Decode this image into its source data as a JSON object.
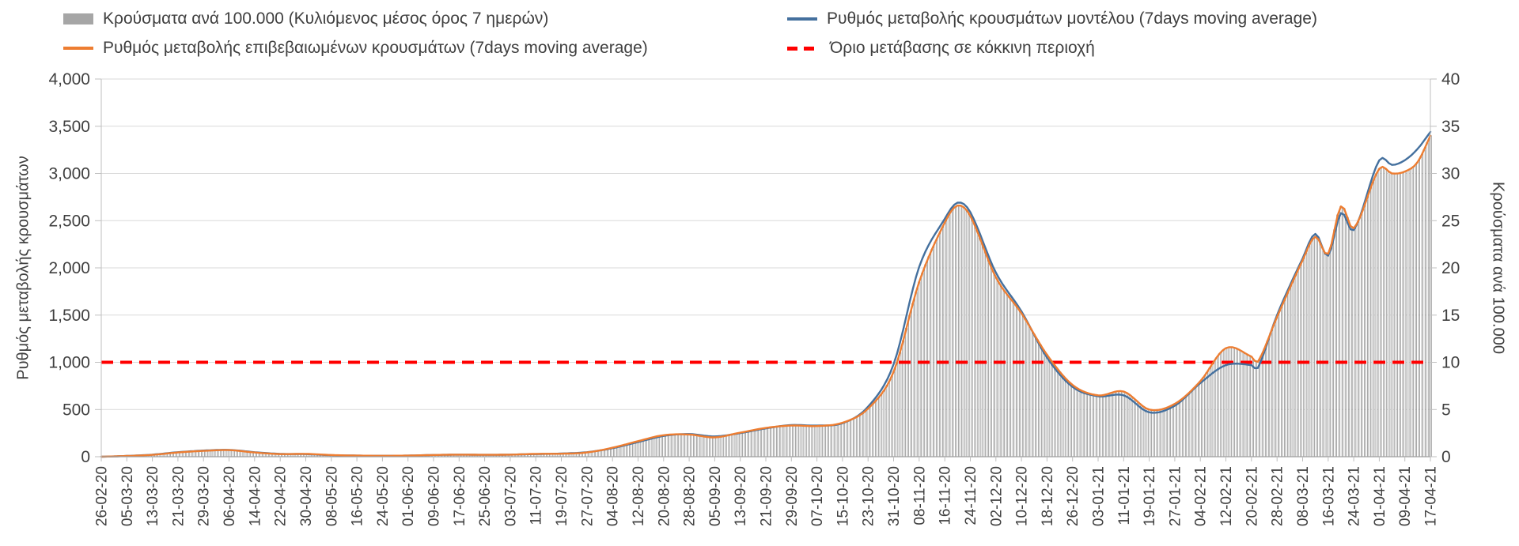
{
  "legend": {
    "items": [
      {
        "key": "cases_per_100k_bars",
        "swatch": "gray-bar",
        "label": "Κρούσματα ανά 100.000 (Κυλιόμενος μέσος όρος 7 ημερών)"
      },
      {
        "key": "model_rate_line",
        "swatch": "blue-line",
        "label": "Ρυθμός μεταβολής κρουσμάτων μοντέλου (7days moving average)"
      },
      {
        "key": "confirmed_rate_line",
        "swatch": "orange-line",
        "label": "Ρυθμός μεταβολής επιβεβαιωμένων κρουσμάτων (7days moving average)"
      },
      {
        "key": "red_zone_threshold",
        "swatch": "red-dashed-line",
        "label": "Όριο μετάβασης σε κόκκινη περιοχή"
      }
    ]
  },
  "colors": {
    "text": "#404040",
    "axis_line": "#9f9f9f",
    "tick_line": "#bfbfbf",
    "grid": "#d9d9d9",
    "bar_legend_swatch": "#a6a6a6",
    "bar_fill": "#ffffff",
    "bar_stroke": "#8f8f8f",
    "model_blue": "#44709e",
    "confirmed_orange": "#ed7d31",
    "threshold_red": "#ff0000"
  },
  "chart_data": {
    "type": "combo_bar_line",
    "title": "",
    "legend_position": "top",
    "grid": {
      "show_horizontal": true,
      "show_vertical": false,
      "color": "#d9d9d9"
    },
    "x_axis": {
      "unit": "date (dd-mm-yy), daily data, labels every 8 days",
      "days_per_tick": 8,
      "tick_labels": [
        "26-02-20",
        "05-03-20",
        "13-03-20",
        "21-03-20",
        "29-03-20",
        "06-04-20",
        "14-04-20",
        "22-04-20",
        "30-04-20",
        "08-05-20",
        "16-05-20",
        "24-05-20",
        "01-06-20",
        "09-06-20",
        "17-06-20",
        "25-06-20",
        "03-07-20",
        "11-07-20",
        "19-07-20",
        "27-07-20",
        "04-08-20",
        "12-08-20",
        "20-08-20",
        "28-08-20",
        "05-09-20",
        "13-09-20",
        "21-09-20",
        "29-09-20",
        "07-10-20",
        "15-10-20",
        "23-10-20",
        "31-10-20",
        "08-11-20",
        "16-11-20",
        "24-11-20",
        "02-12-20",
        "10-12-20",
        "18-12-20",
        "26-12-20",
        "03-01-21",
        "11-01-21",
        "19-01-21",
        "27-01-21",
        "04-02-21",
        "12-02-21",
        "20-02-21",
        "28-02-21",
        "08-03-21",
        "16-03-21",
        "24-03-21",
        "01-04-21",
        "09-04-21",
        "17-04-21"
      ]
    },
    "left_axis": {
      "title": "Ρυθμός μεταβολής κρουσμάτων",
      "min": 0,
      "max": 4000,
      "step": 500,
      "tick_labels": [
        "4,000",
        "3,500",
        "3,000",
        "2,500",
        "2,000",
        "1,500",
        "1,000",
        "500",
        "0"
      ]
    },
    "right_axis": {
      "title": "Κρούσματα ανά 100.000",
      "min": 0,
      "max": 40,
      "step": 5,
      "tick_labels": [
        "40",
        "35",
        "30",
        "25",
        "20",
        "15",
        "10",
        "5",
        "0"
      ]
    },
    "threshold": {
      "label": "Όριο μετάβασης σε κόκκινη περιοχή",
      "value_left_axis": 1000,
      "value_right_axis": 10,
      "color": "#ff0000",
      "style": "dashed"
    },
    "bars": {
      "name": "Κρούσματα ανά 100.000 (Κυλιόμενος μέσος όρος 7 ημερών)",
      "axis": "right",
      "note": "daily bars; heights visually coincide with confirmed-rate line (right axis = left axis / 100)",
      "values_equal": "confirmed_series_value / 100"
    },
    "series": [
      {
        "name": "Ρυθμός μεταβολής κρουσμάτων μοντέλου (7days moving average)",
        "color": "#44709e",
        "axis": "left",
        "render": "line",
        "values_at_ticks": [
          0,
          8,
          22,
          48,
          65,
          72,
          48,
          30,
          28,
          16,
          12,
          10,
          12,
          18,
          22,
          20,
          22,
          28,
          34,
          48,
          90,
          155,
          220,
          240,
          215,
          250,
          300,
          335,
          330,
          355,
          530,
          980,
          2010,
          2520,
          2590,
          1950,
          1540,
          1050,
          740,
          640,
          650,
          470,
          540,
          780,
          970,
          970,
          1500,
          2100,
          2130,
          2400,
          3140,
          3140,
          3440
        ],
        "detail_points": [
          {
            "day": 268,
            "value": 2690
          },
          {
            "day": 362,
            "value": 940
          },
          {
            "day": 380,
            "value": 2360
          },
          {
            "day": 388,
            "value": 2580
          },
          {
            "day": 404,
            "value": 3090
          },
          {
            "day": 412,
            "value": 3260
          }
        ]
      },
      {
        "name": "Ρυθμός μεταβολής επιβεβαιωμένων κρουσμάτων (7days moving average)",
        "color": "#ed7d31",
        "axis": "left",
        "render": "line",
        "values_at_ticks": [
          0,
          8,
          20,
          45,
          62,
          70,
          45,
          28,
          30,
          18,
          12,
          10,
          12,
          18,
          22,
          20,
          22,
          30,
          32,
          45,
          95,
          165,
          228,
          235,
          205,
          255,
          305,
          330,
          325,
          360,
          510,
          900,
          1850,
          2480,
          2550,
          1900,
          1520,
          1080,
          760,
          650,
          690,
          500,
          560,
          800,
          1150,
          1060,
          1480,
          2080,
          2150,
          2420,
          3050,
          3020,
          3400
        ],
        "detail_points": [
          {
            "day": 268,
            "value": 2660
          },
          {
            "day": 362,
            "value": 1005
          },
          {
            "day": 380,
            "value": 2330
          },
          {
            "day": 388,
            "value": 2650
          },
          {
            "day": 404,
            "value": 3000
          },
          {
            "day": 412,
            "value": 3120
          }
        ]
      }
    ]
  }
}
